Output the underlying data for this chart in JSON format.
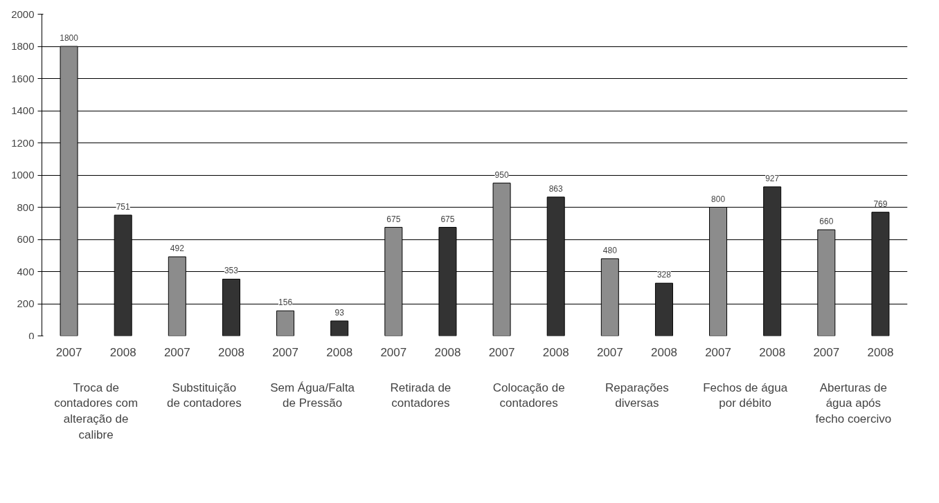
{
  "chart_data": {
    "type": "bar",
    "categories": [
      "Troca de contadores com alteração de calibre",
      "Substituição de contadores",
      "Sem Água/Falta de Pressão",
      "Retirada de contadores",
      "Colocação de contadores",
      "Reparações diversas",
      "Fechos de água por débito",
      "Aberturas de água após fecho coercivo"
    ],
    "series": [
      {
        "name": "2007",
        "color": "#8c8c8c",
        "values": [
          1800,
          492,
          156,
          675,
          950,
          480,
          800,
          660
        ]
      },
      {
        "name": "2008",
        "color": "#333333",
        "values": [
          751,
          353,
          93,
          675,
          863,
          328,
          927,
          769
        ]
      }
    ],
    "ylim": [
      0,
      2000
    ],
    "yticks": [
      0,
      200,
      400,
      600,
      800,
      1000,
      1200,
      1400,
      1600,
      1800,
      2000
    ],
    "grid": "y",
    "data_labels": true
  }
}
